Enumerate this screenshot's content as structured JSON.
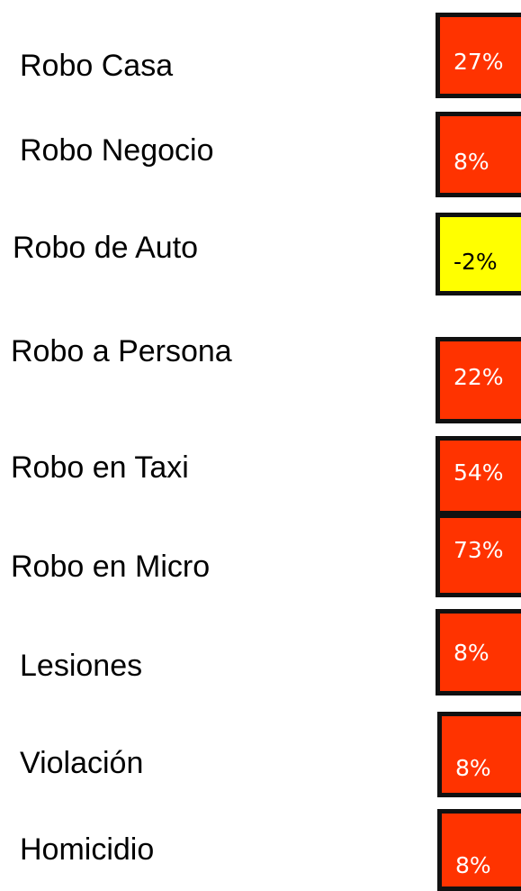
{
  "rows": [
    {
      "label": "Robo Casa",
      "value": "27%",
      "color": "#ff3300"
    },
    {
      "label": "Robo Negocio",
      "value": "8%",
      "color": "#ff3300"
    },
    {
      "label": "Robo de Auto",
      "value": "-2%",
      "color": "#ffff00"
    },
    {
      "label": "Robo a Persona",
      "value": "22%",
      "color": "#ff3300"
    },
    {
      "label": "Robo en Taxi",
      "value": "54%",
      "color": "#ff3300"
    },
    {
      "label": "Robo en Micro",
      "value": "73%",
      "color": "#ff3300"
    },
    {
      "label": "Lesiones",
      "value": "8%",
      "color": "#ff3300"
    },
    {
      "label": "Violación",
      "value": "8%",
      "color": "#ff3300"
    },
    {
      "label": "Homicidio",
      "value": "8%",
      "color": "#ff3300"
    }
  ]
}
